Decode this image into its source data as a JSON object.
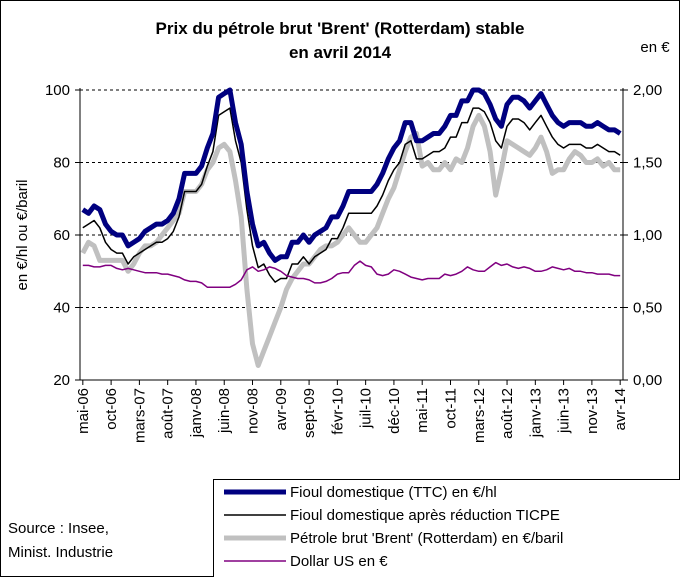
{
  "chart_data": {
    "type": "line",
    "title": [
      "Prix du pétrole brut 'Brent' (Rotterdam)  stable",
      "en avril 2014"
    ],
    "ylabel": "en €/hl ou €/baril",
    "y2label": "en €",
    "source": [
      "Source : Insee,",
      "Minist. Industrie"
    ],
    "categories": [
      "mai-06",
      null,
      null,
      null,
      null,
      "oct-06",
      null,
      null,
      null,
      null,
      "mars-07",
      null,
      null,
      null,
      null,
      "août-07",
      null,
      null,
      null,
      null,
      "janv-08",
      null,
      null,
      null,
      null,
      "juin-08",
      null,
      null,
      null,
      null,
      "nov-08",
      null,
      null,
      null,
      null,
      "avr-09",
      null,
      null,
      null,
      null,
      "sept-09",
      null,
      null,
      null,
      null,
      "févr-10",
      null,
      null,
      null,
      null,
      "juil-10",
      null,
      null,
      null,
      null,
      "déc-10",
      null,
      null,
      null,
      null,
      "mai-11",
      null,
      null,
      null,
      null,
      "oct-11",
      null,
      null,
      null,
      null,
      "mars-12",
      null,
      null,
      null,
      null,
      "août-12",
      null,
      null,
      null,
      null,
      "janv-13",
      null,
      null,
      null,
      null,
      "juin-13",
      null,
      null,
      null,
      null,
      "nov-13",
      null,
      null,
      null,
      null,
      "avr-14"
    ],
    "ylim": [
      20,
      100
    ],
    "yticks": [
      20,
      40,
      60,
      80,
      100
    ],
    "y2lim": [
      0,
      2
    ],
    "y2ticks": [
      {
        "value": 0,
        "label": "0,00"
      },
      {
        "value": 0.5,
        "label": "0,50"
      },
      {
        "value": 1,
        "label": "1,00"
      },
      {
        "value": 1.5,
        "label": "1,50"
      },
      {
        "value": 2,
        "label": "2,00"
      }
    ],
    "grid": true,
    "series": [
      {
        "name": "Fioul domestique (TTC) en €/hl",
        "color": "#000080",
        "line_width": 5,
        "values": [
          67,
          66,
          68,
          67,
          63,
          61,
          60,
          60,
          57,
          58,
          59,
          61,
          62,
          63,
          63,
          64,
          66,
          70,
          77,
          77,
          77,
          79,
          84,
          88,
          98,
          99,
          100,
          91,
          85,
          72,
          63,
          57,
          58,
          55,
          53,
          54,
          54,
          58,
          58,
          60,
          58,
          60,
          61,
          62,
          65,
          65,
          68,
          72,
          72,
          72,
          72,
          72,
          74,
          77,
          81,
          84,
          86,
          91,
          91,
          86,
          86,
          87,
          88,
          88,
          90,
          93,
          93,
          97,
          97,
          100,
          100,
          99,
          96,
          92,
          90,
          96,
          98,
          98,
          97,
          95,
          97,
          99,
          96,
          93,
          91,
          90,
          91,
          91,
          91,
          90,
          90,
          91,
          90,
          89,
          89,
          88
        ]
      },
      {
        "name": "Fioul domestique après réduction TICPE",
        "color": "#000000",
        "line_width": 1.5,
        "values": [
          62,
          63,
          64,
          62,
          58,
          56,
          55,
          55,
          52,
          54,
          55,
          56,
          57,
          58,
          58,
          59,
          61,
          65,
          72,
          72,
          72,
          74,
          79,
          83,
          93,
          94,
          95,
          86,
          80,
          67,
          57,
          51,
          52,
          49,
          47,
          48,
          48,
          52,
          52,
          54,
          52,
          54,
          55,
          56,
          59,
          59,
          62,
          66,
          66,
          66,
          66,
          66,
          68,
          71,
          75,
          78,
          80,
          85,
          86,
          81,
          81,
          82,
          83,
          83,
          84,
          87,
          87,
          91,
          91,
          95,
          95,
          94,
          91,
          86,
          84,
          90,
          92,
          92,
          91,
          89,
          91,
          93,
          90,
          87,
          85,
          84,
          85,
          85,
          85,
          84,
          84,
          85,
          84,
          83,
          83,
          82
        ]
      },
      {
        "name": "Pétrole brut 'Brent' (Rotterdam) en €/baril",
        "color": "#c0c0c0",
        "line_width": 5,
        "values": [
          55,
          58,
          57,
          53,
          53,
          53,
          53,
          53,
          50,
          52,
          55,
          57,
          57,
          58,
          60,
          62,
          64,
          66,
          72,
          72,
          72,
          74,
          78,
          80,
          84,
          85,
          83,
          75,
          65,
          45,
          30,
          24,
          28,
          32,
          36,
          40,
          45,
          48,
          50,
          52,
          52,
          54,
          56,
          57,
          57,
          58,
          60,
          62,
          60,
          58,
          58,
          60,
          62,
          66,
          70,
          73,
          78,
          83,
          87,
          88,
          79,
          80,
          78,
          78,
          80,
          78,
          81,
          80,
          84,
          90,
          93,
          90,
          83,
          71,
          78,
          86,
          85,
          84,
          83,
          82,
          84,
          87,
          83,
          77,
          78,
          78,
          81,
          83,
          82,
          80,
          80,
          81,
          79,
          80,
          78,
          78
        ]
      },
      {
        "name": "Dollar US en €",
        "color": "#800080",
        "line_width": 1.5,
        "axis": "y2",
        "values": [
          0.79,
          0.79,
          0.78,
          0.78,
          0.79,
          0.79,
          0.77,
          0.76,
          0.77,
          0.76,
          0.75,
          0.74,
          0.74,
          0.74,
          0.73,
          0.73,
          0.72,
          0.71,
          0.69,
          0.68,
          0.68,
          0.67,
          0.64,
          0.64,
          0.64,
          0.64,
          0.64,
          0.66,
          0.69,
          0.76,
          0.78,
          0.75,
          0.76,
          0.78,
          0.77,
          0.75,
          0.72,
          0.71,
          0.7,
          0.7,
          0.69,
          0.67,
          0.67,
          0.68,
          0.7,
          0.73,
          0.74,
          0.74,
          0.79,
          0.82,
          0.79,
          0.78,
          0.73,
          0.72,
          0.73,
          0.76,
          0.75,
          0.73,
          0.71,
          0.7,
          0.69,
          0.7,
          0.7,
          0.7,
          0.73,
          0.72,
          0.73,
          0.75,
          0.78,
          0.76,
          0.75,
          0.75,
          0.78,
          0.81,
          0.79,
          0.8,
          0.78,
          0.77,
          0.78,
          0.77,
          0.75,
          0.75,
          0.76,
          0.78,
          0.77,
          0.76,
          0.77,
          0.75,
          0.75,
          0.74,
          0.74,
          0.73,
          0.73,
          0.73,
          0.72,
          0.72
        ]
      }
    ]
  }
}
